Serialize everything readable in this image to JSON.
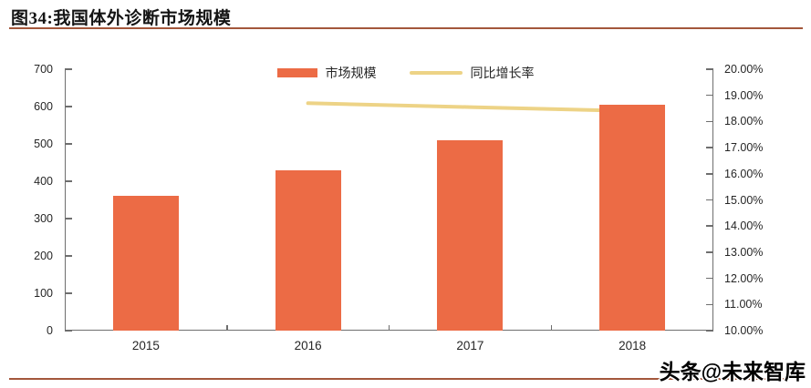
{
  "header": {
    "title": "图34:我国体外诊断市场规模"
  },
  "footer": {
    "watermark": "头条@未来智库"
  },
  "colors": {
    "bar": "#EC6B45",
    "line": "#EDD386",
    "axis": "#6E6E6E",
    "divider": "#A3573B",
    "text": "#262626"
  },
  "chart_data": {
    "type": "bar",
    "title": "我国体外诊断市场规模",
    "categories": [
      "2015",
      "2016",
      "2017",
      "2018"
    ],
    "series": [
      {
        "name": "市场规模",
        "type": "bar",
        "axis": "left",
        "values": [
          360,
          430,
          510,
          604
        ],
        "color": "#EC6B45"
      },
      {
        "name": "同比增长率",
        "type": "line",
        "axis": "right",
        "values": [
          null,
          18.7,
          18.55,
          18.4
        ],
        "color": "#EDD386"
      }
    ],
    "left_axis": {
      "min": 0,
      "max": 700,
      "step": 100,
      "labels": [
        "0",
        "100",
        "200",
        "300",
        "400",
        "500",
        "600",
        "700"
      ]
    },
    "right_axis": {
      "min": 10,
      "max": 20,
      "step": 1,
      "labels": [
        "10.00%",
        "11.00%",
        "12.00%",
        "13.00%",
        "14.00%",
        "15.00%",
        "16.00%",
        "17.00%",
        "18.00%",
        "19.00%",
        "20.00%"
      ]
    },
    "legend": {
      "position": "top",
      "items": [
        "市场规模",
        "同比增长率"
      ]
    },
    "grid": false
  }
}
